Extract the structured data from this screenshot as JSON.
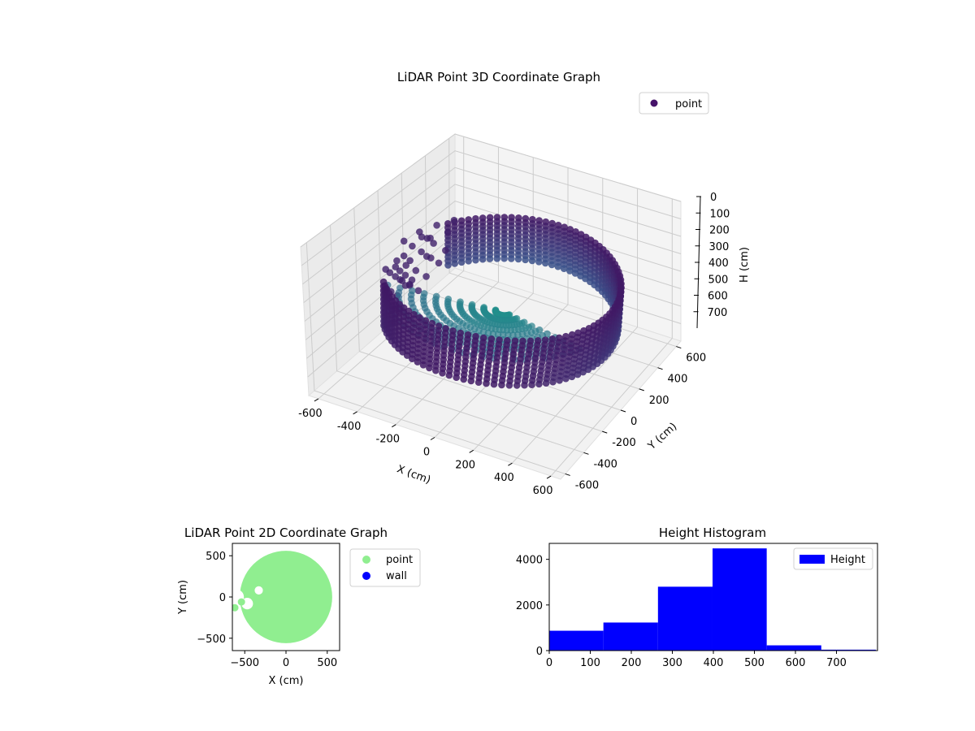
{
  "chart_data": [
    {
      "type": "scatter",
      "projection": "3d",
      "title": "LiDAR Point 3D Coordinate Graph",
      "xlabel": "X (cm)",
      "ylabel": "Y (cm)",
      "zlabel": "H (cm)",
      "xlim": [
        -650,
        650
      ],
      "ylim": [
        -650,
        650
      ],
      "zlim": [
        800,
        0
      ],
      "z_inverted": true,
      "xticks": [
        -600,
        -400,
        -200,
        0,
        200,
        400,
        600
      ],
      "yticks": [
        -600,
        -400,
        -200,
        0,
        200,
        400,
        600
      ],
      "zticks": [
        0,
        100,
        200,
        300,
        400,
        500,
        600,
        700
      ],
      "grid": true,
      "legend": {
        "location": "upper-right",
        "entries": [
          "point"
        ]
      },
      "colormap": "viridis",
      "colormap_stops": [
        "#440154",
        "#3b528b",
        "#21918c"
      ],
      "series": [
        {
          "name": "point",
          "marker_color": "#46136a",
          "description_points": {
            "wall_radius": 550,
            "wall_height_range": [
              280,
              520
            ],
            "gap_angle_deg": [
              150,
              215
            ]
          }
        }
      ]
    },
    {
      "type": "scatter",
      "title": "LiDAR Point 2D Coordinate Graph",
      "xlabel": "X (cm)",
      "ylabel": "Y (cm)",
      "xlim": [
        -650,
        650
      ],
      "ylim": [
        -650,
        650
      ],
      "xticks": [
        -500,
        0,
        500
      ],
      "yticks": [
        -500,
        0,
        500
      ],
      "grid": false,
      "legend": {
        "location": "outside-right",
        "entries": [
          "point",
          "wall"
        ]
      },
      "series": [
        {
          "name": "point",
          "color": "#90ee90",
          "radius": 560
        },
        {
          "name": "wall",
          "color": "#0000ff"
        }
      ]
    },
    {
      "type": "bar",
      "subtype": "histogram",
      "title": "Height Histogram",
      "xlim": [
        0,
        800
      ],
      "ylim": [
        0,
        4700
      ],
      "xticks": [
        0,
        100,
        200,
        300,
        400,
        500,
        600,
        700
      ],
      "yticks": [
        0,
        2000,
        4000
      ],
      "grid": false,
      "legend": {
        "location": "upper-right",
        "entries": [
          "Height"
        ]
      },
      "series": [
        {
          "name": "Height",
          "color": "#0000ff",
          "bins": [
            0,
            132,
            265,
            398,
            530,
            663,
            796
          ],
          "values": [
            870,
            1230,
            2800,
            4480,
            230,
            40
          ]
        }
      ]
    }
  ]
}
